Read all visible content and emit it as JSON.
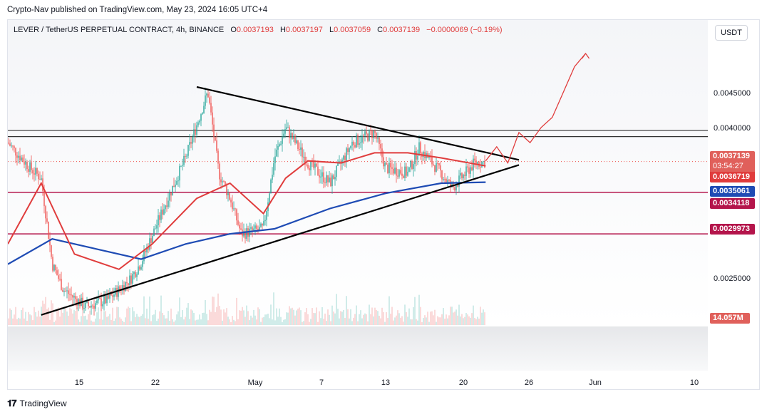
{
  "publisher": "Crypto-Nav published on TradingView.com, May 23, 2024 16:05 UTC+4",
  "header": {
    "symbol": "LEVER / TetherUS PERPETUAL CONTRACT, 4h, BINANCE",
    "o_label": "O",
    "o_value": "0.0037193",
    "h_label": "H",
    "h_value": "0.0037197",
    "l_label": "L",
    "l_value": "0.0037059",
    "c_label": "C",
    "c_value": "0.0037139",
    "change": "−0.0000069 (−0.19%)"
  },
  "currency_button": "USDT",
  "y_axis_ticks": [
    "0.0045000",
    "0.0040000",
    "0.0025000"
  ],
  "price_tags": {
    "last_price": "0.0037139",
    "countdown": "03:54:27",
    "ma_red": "0.0036719",
    "ma_blue": "0.0035061",
    "level_1": "0.0034118",
    "level_2": "0.0029973"
  },
  "volume_label": "14.057M",
  "x_axis_ticks": [
    "15",
    "22",
    "May",
    "7",
    "13",
    "20",
    "26",
    "Jun",
    "10"
  ],
  "footer": {
    "brand": "TradingView"
  },
  "colors": {
    "candle_up": "#26a69a",
    "candle_down": "#ef5350",
    "ma_red": "#e03c3c",
    "ma_blue": "#1e4bb4",
    "level_line": "#b4154b",
    "projection": "#e03c3c"
  },
  "chart_data": {
    "type": "candlestick",
    "timeframe": "4h",
    "x_range": [
      "2024-04-10",
      "2024-06-12"
    ],
    "y_range": [
      0.0021,
      0.0049
    ],
    "close_path": [
      [
        "2024-04-10",
        0.0039
      ],
      [
        "2024-04-12",
        0.00365
      ],
      [
        "2024-04-13",
        0.00355
      ],
      [
        "2024-04-14",
        0.0027
      ],
      [
        "2024-04-15",
        0.00245
      ],
      [
        "2024-04-17",
        0.00228
      ],
      [
        "2024-04-19",
        0.00235
      ],
      [
        "2024-04-21",
        0.00255
      ],
      [
        "2024-04-22",
        0.00272
      ],
      [
        "2024-04-24",
        0.00325
      ],
      [
        "2024-04-26",
        0.00375
      ],
      [
        "2024-04-28",
        0.0044
      ],
      [
        "2024-04-29",
        0.0036
      ],
      [
        "2024-04-30",
        0.00335
      ],
      [
        "2024-05-01",
        0.003
      ],
      [
        "2024-05-03",
        0.00305
      ],
      [
        "2024-05-04",
        0.00375
      ],
      [
        "2024-05-05",
        0.00405
      ],
      [
        "2024-05-07",
        0.0037
      ],
      [
        "2024-05-09",
        0.0035
      ],
      [
        "2024-05-11",
        0.0039
      ],
      [
        "2024-05-13",
        0.004
      ],
      [
        "2024-05-14",
        0.00365
      ],
      [
        "2024-05-16",
        0.0036
      ],
      [
        "2024-05-17",
        0.00385
      ],
      [
        "2024-05-19",
        0.0036
      ],
      [
        "2024-05-20",
        0.00345
      ],
      [
        "2024-05-22",
        0.0037
      ],
      [
        "2024-05-23",
        0.00371
      ]
    ],
    "ma_red": [
      [
        "2024-04-10",
        0.0029
      ],
      [
        "2024-04-13",
        0.0035
      ],
      [
        "2024-04-16",
        0.0028
      ],
      [
        "2024-04-20",
        0.00265
      ],
      [
        "2024-04-23",
        0.0029
      ],
      [
        "2024-04-27",
        0.00335
      ],
      [
        "2024-04-30",
        0.0035
      ],
      [
        "2024-05-03",
        0.0032
      ],
      [
        "2024-05-05",
        0.00355
      ],
      [
        "2024-05-07",
        0.00372
      ],
      [
        "2024-05-10",
        0.0037
      ],
      [
        "2024-05-13",
        0.0038
      ],
      [
        "2024-05-16",
        0.0038
      ],
      [
        "2024-05-19",
        0.00375
      ],
      [
        "2024-05-23",
        0.00367
      ]
    ],
    "ma_blue": [
      [
        "2024-04-10",
        0.0027
      ],
      [
        "2024-04-14",
        0.00295
      ],
      [
        "2024-04-18",
        0.00285
      ],
      [
        "2024-04-22",
        0.00275
      ],
      [
        "2024-04-26",
        0.0029
      ],
      [
        "2024-04-30",
        0.003
      ],
      [
        "2024-05-04",
        0.00305
      ],
      [
        "2024-05-09",
        0.00325
      ],
      [
        "2024-05-14",
        0.0034
      ],
      [
        "2024-05-19",
        0.0035
      ],
      [
        "2024-05-23",
        0.00351
      ]
    ],
    "horizontal_levels": [
      0.00402,
      0.00396,
      0.00341,
      0.003
    ],
    "trendlines": [
      {
        "from": [
          "2024-04-27",
          0.00445
        ],
        "to": [
          "2024-05-26",
          0.00373
        ]
      },
      {
        "from": [
          "2024-04-13",
          0.0022
        ],
        "to": [
          "2024-05-26",
          0.00368
        ]
      }
    ],
    "projection": [
      [
        "2024-05-23",
        0.00372
      ],
      [
        "2024-05-24",
        0.00386
      ],
      [
        "2024-05-25",
        0.0037
      ],
      [
        "2024-05-26",
        0.004
      ],
      [
        "2024-05-27",
        0.0039
      ],
      [
        "2024-05-28",
        0.00405
      ],
      [
        "2024-05-29",
        0.00415
      ],
      [
        "2024-05-30",
        0.0044
      ],
      [
        "2024-05-31",
        0.00465
      ],
      [
        "2024-06-01",
        0.00478
      ]
    ]
  }
}
